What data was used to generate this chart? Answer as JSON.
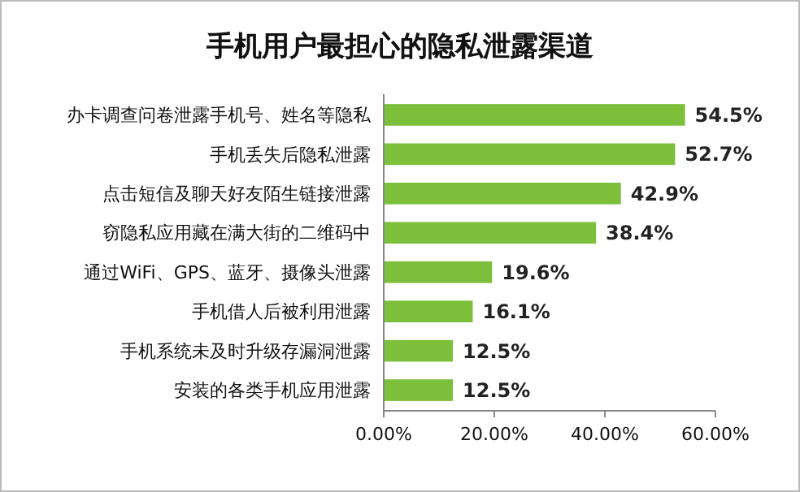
{
  "chart_data": {
    "type": "bar",
    "orientation": "horizontal",
    "title": "手机用户最担心的隐私泄露渠道",
    "categories": [
      "办卡调查问卷泄露手机号、姓名等隐私",
      "手机丢失后隐私泄露",
      "点击短信及聊天好友陌生链接泄露",
      "窃隐私应用藏在满大街的二维码中",
      "通过WiFi、GPS、蓝牙、摄像头泄露",
      "手机借人后被利用泄露",
      "手机系统未及时升级存漏洞泄露",
      "安装的各类手机应用泄露"
    ],
    "values": [
      54.5,
      52.7,
      42.9,
      38.4,
      19.6,
      16.1,
      12.5,
      12.5
    ],
    "value_labels": [
      "54.5%",
      "52.7%",
      "42.9%",
      "38.4%",
      "19.6%",
      "16.1%",
      "12.5%",
      "12.5%"
    ],
    "color": "#7cbf3a",
    "xlim": [
      0,
      60
    ],
    "xticks": [
      {
        "value": 0,
        "label": "0.00%"
      },
      {
        "value": 20,
        "label": "20.00%"
      },
      {
        "value": 40,
        "label": "40.00%"
      },
      {
        "value": 60,
        "label": "60.00%"
      }
    ]
  }
}
